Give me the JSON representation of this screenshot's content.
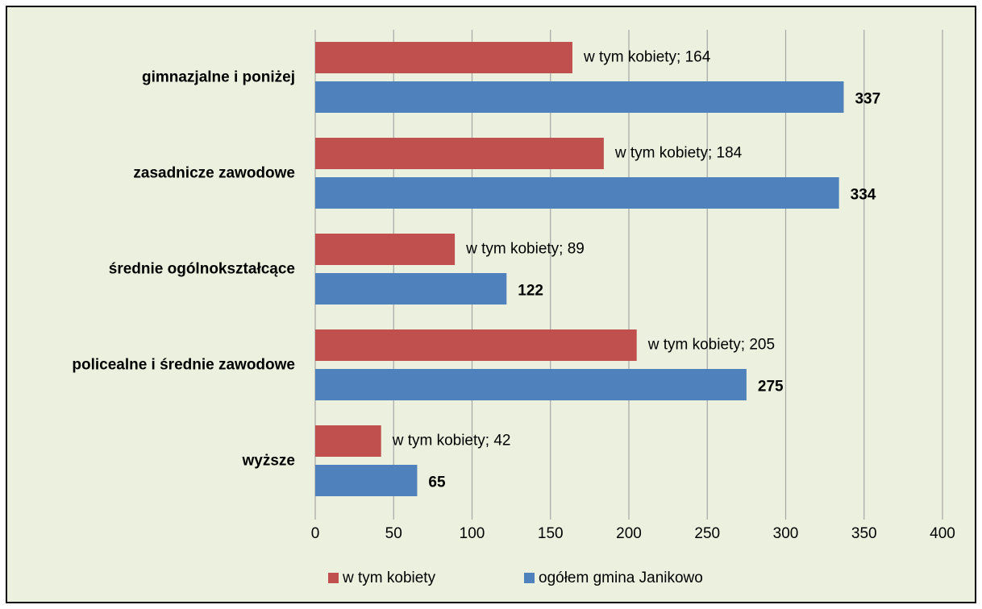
{
  "chart_data": {
    "type": "bar",
    "orientation": "horizontal",
    "categories": [
      "gimnazjalne i poniżej",
      "zasadnicze zawodowe",
      "średnie ogólnokształcące",
      "policealne i średnie zawodowe",
      "wyższe"
    ],
    "series": [
      {
        "name": "w tym kobiety",
        "color": "#c0504d",
        "values": [
          164,
          184,
          89,
          205,
          42
        ],
        "value_labels": [
          "w tym kobiety; 164",
          "w tym kobiety; 184",
          "w tym kobiety; 89",
          "w tym kobiety; 205",
          "w tym kobiety; 42"
        ]
      },
      {
        "name": "ogółem gmina Janikowo",
        "color": "#4f81bd",
        "values": [
          337,
          334,
          122,
          275,
          65
        ]
      }
    ],
    "xlim": [
      0,
      400
    ],
    "xticks": [
      0,
      50,
      100,
      150,
      200,
      250,
      300,
      350,
      400
    ],
    "grid": true,
    "legend": "bottom"
  }
}
